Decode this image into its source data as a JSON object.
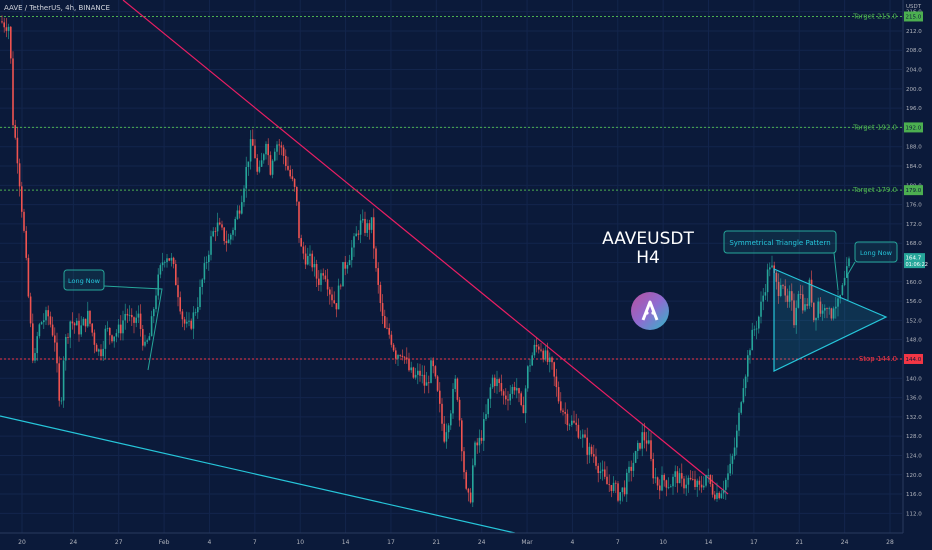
{
  "header": {
    "symbol_line": "AAVE / TetherUS, 4h, BINANCE"
  },
  "currency_label": "USDT",
  "watermark": {
    "title": "AAVEUSDT",
    "timeframe": "H4",
    "logo_icon": "aave-ghost-logo"
  },
  "annotations": {
    "pattern_label": "Symmetrical Triangle Pattern",
    "long_now_left": "Long Now",
    "long_now_right": "Long Now"
  },
  "level_lines": [
    {
      "name": "Target 215.0",
      "value": 215.0,
      "tag": "215.0",
      "color": "#4caf50"
    },
    {
      "name": "Target 192.0",
      "value": 192.0,
      "tag": "192.0",
      "color": "#4caf50"
    },
    {
      "name": "Target 179.0",
      "value": 179.0,
      "tag": "179.0",
      "color": "#4caf50"
    },
    {
      "name": "Stop 144.0",
      "value": 144.0,
      "tag": "144.0",
      "color": "#f23645"
    }
  ],
  "last_price": {
    "value": "164.7",
    "countdown": "01:06:22",
    "color": "#26a69a"
  },
  "colors": {
    "background": "#0b1a3a",
    "up": "#26a69a",
    "down": "#ef5350",
    "trendline": "#e91e63",
    "channel": "#26c6da",
    "grid": "#13254c"
  },
  "chart_data": {
    "type": "candlestick",
    "ylim": [
      110,
      218
    ],
    "y_ticks": [
      112.0,
      116.0,
      120.0,
      124.0,
      128.0,
      132.0,
      136.0,
      140.0,
      144.0,
      148.0,
      152.0,
      156.0,
      160.0,
      164.0,
      168.0,
      172.0,
      176.0,
      180.0,
      184.0,
      188.0,
      192.0,
      196.0,
      200.0,
      204.0,
      208.0,
      212.0,
      216.0
    ],
    "x_ticks": [
      "20",
      "24",
      "27",
      "Feb",
      "4",
      "7",
      "10",
      "14",
      "17",
      "21",
      "24",
      "Mar",
      "4",
      "7",
      "10",
      "14",
      "17",
      "21",
      "24",
      "28"
    ],
    "price_path": [
      [
        0,
        214
      ],
      [
        10,
        213
      ],
      [
        12,
        195
      ],
      [
        18,
        185
      ],
      [
        24,
        170
      ],
      [
        30,
        152
      ],
      [
        34,
        142
      ],
      [
        38,
        150
      ],
      [
        42,
        152
      ],
      [
        48,
        153
      ],
      [
        55,
        148
      ],
      [
        60,
        132
      ],
      [
        64,
        146
      ],
      [
        70,
        152
      ],
      [
        80,
        150
      ],
      [
        88,
        153
      ],
      [
        94,
        148
      ],
      [
        100,
        145
      ],
      [
        106,
        150
      ],
      [
        112,
        149
      ],
      [
        120,
        150
      ],
      [
        126,
        154
      ],
      [
        132,
        151
      ],
      [
        138,
        153
      ],
      [
        145,
        146
      ],
      [
        150,
        149
      ],
      [
        156,
        158
      ],
      [
        162,
        164
      ],
      [
        166,
        166
      ],
      [
        172,
        164
      ],
      [
        178,
        158
      ],
      [
        183,
        152
      ],
      [
        188,
        150
      ],
      [
        192,
        152
      ],
      [
        198,
        156
      ],
      [
        204,
        162
      ],
      [
        210,
        168
      ],
      [
        216,
        172
      ],
      [
        222,
        170
      ],
      [
        228,
        168
      ],
      [
        234,
        172
      ],
      [
        240,
        176
      ],
      [
        246,
        183
      ],
      [
        250,
        188
      ],
      [
        254,
        188
      ],
      [
        258,
        181
      ],
      [
        262,
        185
      ],
      [
        266,
        190
      ],
      [
        270,
        183
      ],
      [
        274,
        188
      ],
      [
        278,
        189
      ],
      [
        284,
        186
      ],
      [
        290,
        182
      ],
      [
        296,
        178
      ],
      [
        300,
        167
      ],
      [
        306,
        165
      ],
      [
        312,
        164
      ],
      [
        318,
        160
      ],
      [
        324,
        163
      ],
      [
        330,
        158
      ],
      [
        336,
        155
      ],
      [
        342,
        162
      ],
      [
        348,
        165
      ],
      [
        354,
        168
      ],
      [
        360,
        172
      ],
      [
        366,
        171
      ],
      [
        372,
        172
      ],
      [
        376,
        162
      ],
      [
        380,
        156
      ],
      [
        384,
        150
      ],
      [
        390,
        149
      ],
      [
        396,
        145
      ],
      [
        402,
        146
      ],
      [
        408,
        142
      ],
      [
        414,
        140
      ],
      [
        420,
        141
      ],
      [
        426,
        138
      ],
      [
        432,
        143
      ],
      [
        438,
        136
      ],
      [
        444,
        128
      ],
      [
        450,
        133
      ],
      [
        456,
        140
      ],
      [
        462,
        126
      ],
      [
        466,
        116
      ],
      [
        470,
        114
      ],
      [
        474,
        125
      ],
      [
        480,
        127
      ],
      [
        486,
        132
      ],
      [
        492,
        140
      ],
      [
        498,
        139
      ],
      [
        504,
        136
      ],
      [
        510,
        137
      ],
      [
        516,
        139
      ],
      [
        522,
        132
      ],
      [
        528,
        142
      ],
      [
        534,
        146
      ],
      [
        540,
        147
      ],
      [
        546,
        144
      ],
      [
        552,
        142
      ],
      [
        558,
        136
      ],
      [
        564,
        133
      ],
      [
        570,
        131
      ],
      [
        576,
        130
      ],
      [
        582,
        128
      ],
      [
        588,
        125
      ],
      [
        594,
        124
      ],
      [
        600,
        121
      ],
      [
        606,
        118
      ],
      [
        612,
        118
      ],
      [
        618,
        116
      ],
      [
        624,
        117
      ],
      [
        630,
        121
      ],
      [
        636,
        124
      ],
      [
        642,
        128
      ],
      [
        648,
        127
      ],
      [
        652,
        121
      ],
      [
        658,
        118
      ],
      [
        664,
        119
      ],
      [
        670,
        118
      ],
      [
        676,
        120
      ],
      [
        682,
        118
      ],
      [
        688,
        119
      ],
      [
        694,
        118
      ],
      [
        700,
        117
      ],
      [
        706,
        120
      ],
      [
        712,
        117
      ],
      [
        718,
        116
      ],
      [
        724,
        118
      ],
      [
        730,
        121
      ],
      [
        734,
        125
      ],
      [
        738,
        130
      ],
      [
        742,
        138
      ],
      [
        746,
        142
      ],
      [
        750,
        147
      ],
      [
        754,
        150
      ],
      [
        758,
        152
      ],
      [
        762,
        156
      ],
      [
        766,
        160
      ],
      [
        770,
        164
      ],
      [
        774,
        161
      ],
      [
        778,
        158
      ],
      [
        782,
        162
      ],
      [
        786,
        154
      ],
      [
        790,
        157
      ],
      [
        794,
        152
      ],
      [
        798,
        159
      ],
      [
        802,
        156
      ],
      [
        806,
        154
      ],
      [
        810,
        160
      ],
      [
        814,
        152
      ],
      [
        818,
        156
      ],
      [
        822,
        153
      ],
      [
        826,
        157
      ],
      [
        830,
        152
      ],
      [
        834,
        156
      ],
      [
        838,
        155
      ],
      [
        842,
        158
      ],
      [
        846,
        161
      ],
      [
        850,
        164.7
      ]
    ]
  }
}
